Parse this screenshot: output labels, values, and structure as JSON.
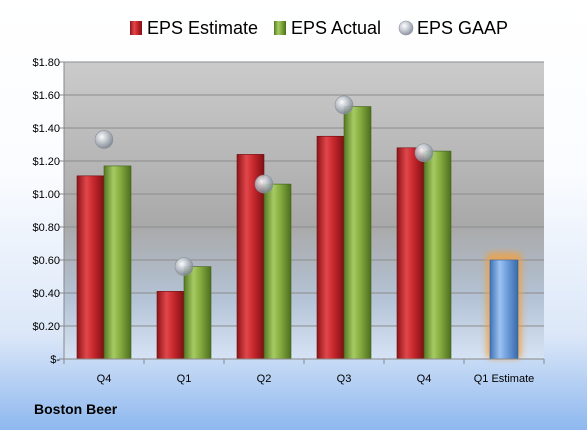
{
  "footer": {
    "company": "Boston Beer"
  },
  "colors": {
    "estimate": "#c0272d",
    "actual": "#7fa83a",
    "gaap": "#a9b1bc",
    "forecast": "#6b9fe0",
    "forecast_glow": "#f0a040"
  },
  "chart_data": {
    "type": "bar",
    "title": "",
    "xlabel": "",
    "ylabel": "",
    "ylim": [
      0,
      1.8
    ],
    "yticks": [
      0,
      0.2,
      0.4,
      0.6,
      0.8,
      1.0,
      1.2,
      1.4,
      1.6,
      1.8
    ],
    "ytick_labels": [
      "$-",
      "$0.20",
      "$0.40",
      "$0.60",
      "$0.80",
      "$1.00",
      "$1.20",
      "$1.40",
      "$1.60",
      "$1.80"
    ],
    "categories": [
      "Q4",
      "Q1",
      "Q2",
      "Q3",
      "Q4",
      "Q1 Estimate"
    ],
    "legend_position": "top",
    "grid": true,
    "series": [
      {
        "name": "EPS Estimate",
        "kind": "bar",
        "values": [
          1.11,
          0.41,
          1.24,
          1.35,
          1.28,
          null
        ]
      },
      {
        "name": "EPS Actual",
        "kind": "bar",
        "values": [
          1.17,
          0.56,
          1.06,
          1.53,
          1.26,
          null
        ]
      },
      {
        "name": "EPS GAAP",
        "kind": "marker",
        "values": [
          1.33,
          0.56,
          1.06,
          1.54,
          1.25,
          null
        ]
      }
    ],
    "forecast": {
      "category": "Q1 Estimate",
      "value": 0.6
    }
  }
}
